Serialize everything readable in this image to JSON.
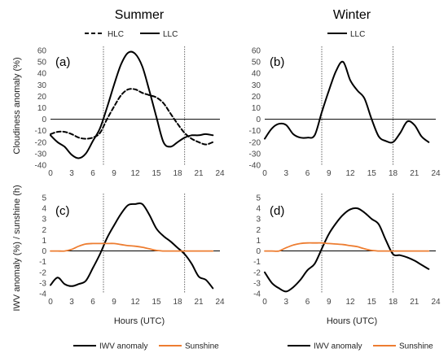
{
  "columns": [
    "Summer",
    "Winter"
  ],
  "ylabel_top": "Cloudiness anomaly (%)",
  "ylabel_bottom": "IWV anomaly (%) / sunshine (h)",
  "xlabel": "Hours (UTC)",
  "colors": {
    "LLC": "#000000",
    "HLC": "#000000",
    "IWV anomaly": "#000000",
    "Sunshine": "#ED7D31",
    "zero_line": "#000000",
    "vline": "#555555"
  },
  "chart_data": [
    {
      "type": "line",
      "panel_label": "(a)",
      "column": "Summer",
      "row": "top",
      "xlim": [
        0,
        24
      ],
      "xticks": [
        0,
        3,
        6,
        9,
        12,
        15,
        18,
        21,
        24
      ],
      "ylim": [
        -40,
        60
      ],
      "yticks": [
        -40,
        -30,
        -20,
        -10,
        0,
        10,
        20,
        30,
        40,
        50,
        60
      ],
      "legend": "top",
      "vlines": [
        7.5,
        19
      ],
      "series": [
        {
          "name": "HLC",
          "dash": true,
          "x": [
            0,
            1,
            2,
            3,
            4,
            5,
            6,
            7,
            8,
            9,
            10,
            11,
            12,
            13,
            14,
            15,
            16,
            17,
            18,
            19,
            20,
            21,
            22,
            23
          ],
          "y": [
            -13,
            -11,
            -11,
            -13,
            -16,
            -17,
            -16,
            -12,
            0,
            11,
            21,
            26,
            26,
            23,
            21,
            19,
            14,
            5,
            -4,
            -12,
            -17,
            -20,
            -22,
            -20
          ]
        },
        {
          "name": "LLC",
          "dash": false,
          "x": [
            0,
            1,
            2,
            3,
            4,
            5,
            6,
            7,
            8,
            9,
            10,
            11,
            12,
            13,
            14,
            15,
            16,
            17,
            18,
            19,
            20,
            21,
            22,
            23
          ],
          "y": [
            -14,
            -20,
            -24,
            -31,
            -34,
            -30,
            -19,
            -8,
            10,
            30,
            48,
            58,
            57,
            46,
            25,
            2,
            -20,
            -24,
            -20,
            -16,
            -14,
            -14,
            -13,
            -14
          ]
        }
      ]
    },
    {
      "type": "line",
      "panel_label": "(b)",
      "column": "Winter",
      "row": "top",
      "xlim": [
        0,
        24
      ],
      "xticks": [
        0,
        3,
        6,
        9,
        12,
        15,
        18,
        21,
        24
      ],
      "ylim": [
        -40,
        60
      ],
      "yticks": [
        -40,
        -30,
        -20,
        -10,
        0,
        10,
        20,
        30,
        40,
        50,
        60
      ],
      "legend": "top",
      "vlines": [
        8,
        18
      ],
      "series": [
        {
          "name": "LLC",
          "dash": false,
          "x": [
            0,
            1,
            2,
            3,
            4,
            5,
            6,
            7,
            8,
            9,
            10,
            11,
            12,
            13,
            14,
            15,
            16,
            17,
            18,
            19,
            20,
            21,
            22,
            23
          ],
          "y": [
            -17,
            -8,
            -4,
            -5,
            -13,
            -16,
            -16,
            -14,
            6,
            25,
            42,
            50,
            34,
            25,
            18,
            0,
            -15,
            -19,
            -20,
            -12,
            -2,
            -5,
            -15,
            -20
          ]
        }
      ]
    },
    {
      "type": "line",
      "panel_label": "(c)",
      "column": "Summer",
      "row": "bottom",
      "xlim": [
        0,
        24
      ],
      "xticks": [
        0,
        3,
        6,
        9,
        12,
        15,
        18,
        21,
        24
      ],
      "ylim": [
        -4,
        5
      ],
      "yticks": [
        -4,
        -3,
        -2,
        -1,
        0,
        1,
        2,
        3,
        4,
        5
      ],
      "legend": "bottom",
      "vlines": [
        7.5,
        19
      ],
      "series": [
        {
          "name": "IWV anomaly",
          "dash": false,
          "x": [
            0,
            1,
            2,
            3,
            4,
            5,
            6,
            7,
            8,
            9,
            10,
            11,
            12,
            13,
            14,
            15,
            16,
            17,
            18,
            19,
            20,
            21,
            22,
            23
          ],
          "y": [
            -3.2,
            -2.5,
            -3.1,
            -3.3,
            -3.1,
            -2.8,
            -1.6,
            -0.3,
            1.2,
            2.4,
            3.5,
            4.3,
            4.4,
            4.4,
            3.4,
            2.1,
            1.4,
            0.9,
            0.3,
            -0.3,
            -1.2,
            -2.4,
            -2.7,
            -3.5
          ]
        },
        {
          "name": "Sunshine",
          "dash": false,
          "x": [
            0,
            1,
            2,
            3,
            4,
            5,
            6,
            7,
            8,
            9,
            10,
            11,
            12,
            13,
            14,
            15,
            16,
            17,
            18,
            19,
            20,
            21,
            22,
            23
          ],
          "y": [
            0,
            0,
            0,
            0.15,
            0.45,
            0.65,
            0.7,
            0.7,
            0.7,
            0.7,
            0.6,
            0.5,
            0.45,
            0.35,
            0.2,
            0.05,
            0,
            0,
            0,
            0,
            0,
            0,
            0,
            0
          ]
        }
      ]
    },
    {
      "type": "line",
      "panel_label": "(d)",
      "column": "Winter",
      "row": "bottom",
      "xlim": [
        0,
        24
      ],
      "xticks": [
        0,
        3,
        6,
        9,
        12,
        15,
        18,
        21,
        24
      ],
      "ylim": [
        -4,
        5
      ],
      "yticks": [
        -4,
        -3,
        -2,
        -1,
        0,
        1,
        2,
        3,
        4,
        5
      ],
      "legend": "bottom",
      "vlines": [
        8,
        18
      ],
      "series": [
        {
          "name": "IWV anomaly",
          "dash": false,
          "x": [
            0,
            1,
            2,
            3,
            4,
            5,
            6,
            7,
            8,
            9,
            10,
            11,
            12,
            13,
            14,
            15,
            16,
            17,
            18,
            19,
            20,
            21,
            22,
            23
          ],
          "y": [
            -2.0,
            -3.0,
            -3.5,
            -3.8,
            -3.4,
            -2.7,
            -1.8,
            -1.2,
            0.2,
            1.6,
            2.6,
            3.4,
            3.9,
            4.0,
            3.6,
            3.0,
            2.5,
            1.0,
            -0.3,
            -0.4,
            -0.6,
            -0.9,
            -1.3,
            -1.7
          ]
        },
        {
          "name": "Sunshine",
          "dash": false,
          "x": [
            0,
            1,
            2,
            3,
            4,
            5,
            6,
            7,
            8,
            9,
            10,
            11,
            12,
            13,
            14,
            15,
            16,
            17,
            18,
            19,
            20,
            21,
            22,
            23
          ],
          "y": [
            0,
            0,
            0,
            0.3,
            0.55,
            0.7,
            0.75,
            0.75,
            0.75,
            0.7,
            0.65,
            0.6,
            0.5,
            0.4,
            0.2,
            0.05,
            0,
            0,
            0,
            0,
            0,
            0,
            0,
            0
          ]
        }
      ]
    }
  ]
}
